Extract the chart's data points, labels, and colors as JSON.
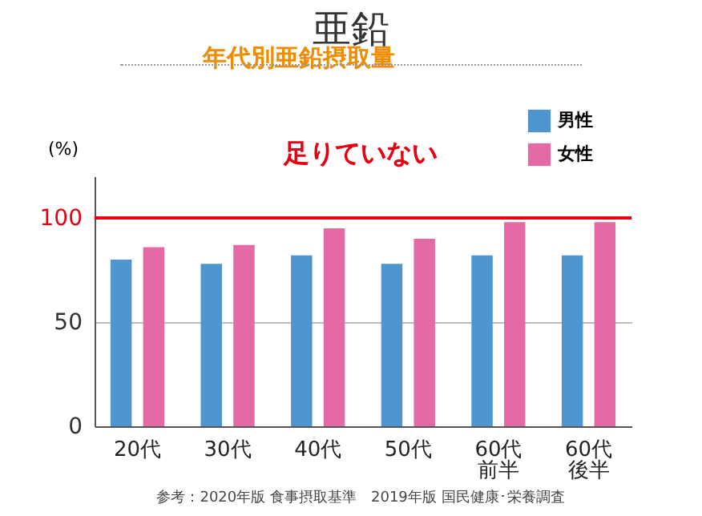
{
  "chart_data": {
    "type": "bar",
    "title": "亜鉛",
    "subtitle": "年代別亜鉛摂取量",
    "ylabel": "(%)",
    "categories": [
      "20代",
      "30代",
      "40代",
      "50代",
      "60代前半",
      "60代後半"
    ],
    "series": [
      {
        "name": "男性",
        "color": "#4f95d0",
        "values": [
          80,
          78,
          82,
          78,
          82,
          82
        ]
      },
      {
        "name": "女性",
        "color": "#e36aa5",
        "values": [
          86,
          87,
          95,
          90,
          98,
          98
        ]
      }
    ],
    "ylim": [
      0,
      120
    ],
    "yticks": [
      0,
      50,
      100
    ],
    "grid": "y",
    "legend": "top right",
    "ref_lines": [
      {
        "axis": "y",
        "value": 100,
        "color": "#e60012"
      }
    ],
    "annotations": [
      "足りていない",
      "参考：2020年版 食事摂取基準　2019年版 国民健康･栄養調査"
    ]
  }
}
